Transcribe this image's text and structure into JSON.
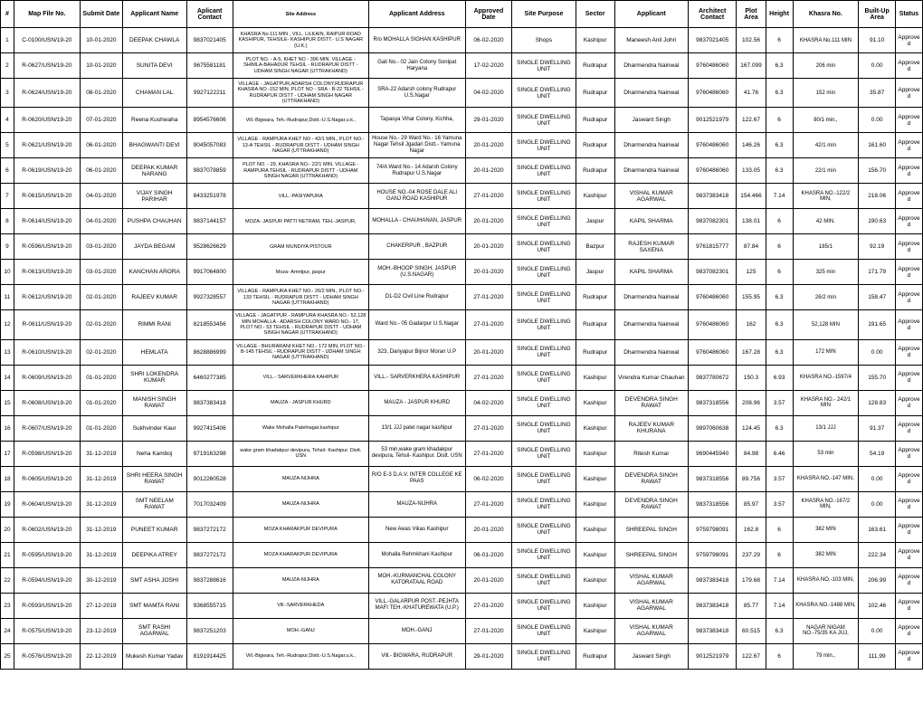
{
  "columns": [
    "#",
    "Map File No.",
    "Submit Date",
    "Applicant Name",
    "Aplicant Contact",
    "Site Address",
    "Applicant Address",
    "Approved Date",
    "Site Purpose",
    "Sector",
    "Applicant",
    "Architect Contact",
    "Plot Area",
    "Height",
    "Khasra No.",
    "Built-Up Area",
    "Status"
  ],
  "rows": [
    [
      "1",
      "C-0100/USN/19-20",
      "10-01-2020",
      "DEEPAK CHAWLA",
      "9837021405",
      "KHASRA No.111 MIN , VILL. LILKAIN, RAIPUR ROAD KASHIPUR, TEHSILE- KASHIPUR DISTT.- U.S NAGAR (U.K.)",
      "R/o MOHALLA SIGHAN KASHIPUR",
      "06-02-2020",
      "Shops",
      "Kashipur",
      "Maneesh Anil Johri",
      "9837021405",
      "102.56",
      "6",
      "KHASRA No.111 MIN",
      "91.10",
      "Approved"
    ],
    [
      "2",
      "R-0627/USN/19-20",
      "10-01-2020",
      "SUNITA DEVI",
      "9675581181",
      "PLOT NO. - A-5, KHET NO - 396 MIN. VILLAGE - SHIMLA-BAHADUR TEHSIL - RUDRAPUR DISTT - UDHAM SINGH NAGAR (UTTRAKHAND)",
      "Gali No.- 02 Jain Colony Sonipat Haryana",
      "17-02-2020",
      "SINGLE DWELLING UNIT",
      "Rudrapur",
      "Dharmendra Nainwal",
      "9760486060",
      "167.099",
      "6.3",
      "206 min",
      "0.00",
      "Approved"
    ],
    [
      "3",
      "R-0624/USN/19-20",
      "08-01-2020",
      "CHAMAN LAL",
      "9927122211",
      "VILLAGE - JAGATPUR,ADARSH COLONY,RUDRAPUR KHASRA NO -152 MIN, PLOT NO - SRA - B-22 TEHSIL - RUDRAPUR DISTT - UDHAM SINGH NAGAR (UTTRAKHAND)",
      "SRA-22 Adarsh colony Rudrapur U.S.Nagar",
      "04-02-2020",
      "SINGLE DWELLING UNIT",
      "Rudrapur",
      "Dharmendra Nainwal",
      "9760486060",
      "41.76",
      "6.3",
      "152 min",
      "35.87",
      "Approved"
    ],
    [
      "4",
      "R-0620/USN/19-20",
      "07-01-2020",
      "Reena Kushwaha",
      "8954576606",
      "Vill.-Bigwara, Teh.-Rudrapur,Distt.-U.S.Nagar,u.k.,",
      "Tapasya Vihar Colony, Kichha,",
      "29-01-2020",
      "SINGLE DWELLING UNIT",
      "Rudrapur",
      "Jaswant Singh",
      "9012521979",
      "122.67",
      "6",
      "80/1 min.,",
      "0.00",
      "Approved"
    ],
    [
      "5",
      "R-0621/USN/19-20",
      "06-01-2020",
      "BHAGWANTI DEVI",
      "9045057083",
      "VILLAGE - RAMPURA KHET NO - 42/1 MIN., PLOT NO.- 13-A TEHSIL - RUDRAPUR DISTT - UDHAM SINGH NAGAR (UTTRAKHAND)",
      "House No.- 29 Ward No.- 16 Yamuna Nagar Tehsil Jgadari Distt.- Yamuna Nagar",
      "20-01-2020",
      "SINGLE DWELLING UNIT",
      "Rudrapur",
      "Dharmendra Nainwal",
      "9760486060",
      "146.26",
      "6.3",
      "42/1 min",
      "161.60",
      "Approved"
    ],
    [
      "6",
      "R-0619/USN/19-20",
      "06-01-2020",
      "DEEPAK KUMAR NARANG",
      "9837078859",
      "PLOT NO. - 29, KHASRA NO.- 22/1 MIN. VILLAGE - RAMPURA TEHSIL - RUDRAPUR DISTT - UDHAM SINGH NAGAR (UTTRAKHAND)",
      "74/A Ward No.- 14 Adarsh Colony Rudrapur U.S.Nagar",
      "20-01-2020",
      "SINGLE DWELLING UNIT",
      "Rudrapur",
      "Dharmendra Nainwal",
      "9760486060",
      "133.05",
      "6.3",
      "22/1 min",
      "156.70",
      "Approved"
    ],
    [
      "7",
      "R-0615/USN/19-20",
      "04-01-2020",
      "VIJAY SINGH PARIHAR",
      "8433251978",
      "VILL.-PASIYAPURA",
      "HOUSE NO.-04 ROSE DALE ALI GANJ ROAD KASHIPUR",
      "27-01-2020",
      "SINGLE DWELLING UNIT",
      "Kashipur",
      "VISHAL KUMAR AGARWAL",
      "9837383418",
      "154.466",
      "7.14",
      "KHASRA NO.-122/2 MIN,",
      "218.06",
      "Approved"
    ],
    [
      "8",
      "R-0614/USN/19-20",
      "04-01-2020",
      "PUSHPA CHAUHAN",
      "9837144157",
      "MOZA- JASPUR PATTI NETRAM, TEH.-JASPUR,",
      "MOHALLA - CHAUHANAN, JASPUR",
      "20-01-2020",
      "SINGLE DWELLING UNIT",
      "Jaspur",
      "KAPIL SHARMA",
      "9837082301",
      "138.01",
      "6",
      "42 MIN.",
      "190.63",
      "Approved"
    ],
    [
      "9",
      "R-0596/USN/19-20",
      "03-01-2020",
      "JAYDA BEGAM",
      "9528626629",
      "GRAM MUNDIYA PISTOUR",
      "CHAKERPUR , BAZPUR",
      "20-01-2020",
      "SINGLE DWELLING UNIT",
      "Bazpur",
      "RAJESH KUMAR SAXENA",
      "9761815777",
      "87.84",
      "6",
      "185/1",
      "92.19",
      "Approved"
    ],
    [
      "10",
      "R-0613/USN/19-20",
      "03-01-2020",
      "KANCHAN ARORA",
      "9917064800",
      "Moza- Amritpur, jaspur",
      "MOH.-BHOOP SINGH, JASPUR (U.S.NAGAR)",
      "20-01-2020",
      "SINGLE DWELLING UNIT",
      "Jaspur",
      "KAPIL SHARMA",
      "9837082301",
      "125",
      "6",
      "325 min",
      "171.79",
      "Approved"
    ],
    [
      "11",
      "R-0612/USN/19-20",
      "02-01-2020",
      "RAJEEV KUMAR",
      "9927328557",
      "VILLAGE - RAMPURA KHET NO.- 26/2 MIN., PLOT NO.- 133 TEHSIL - RUDRAPUR DISTT - UDHAM SINGH NAGAR (UTTRAKHAND)",
      "D1-D2 Civil Line Rudrapur",
      "27-01-2020",
      "SINGLE DWELLING UNIT",
      "Rudrapur",
      "Dharmendra Nainwal",
      "9760486060",
      "155.95",
      "6.3",
      "26/2 min",
      "158.47",
      "Approved"
    ],
    [
      "12",
      "R-0611/USN/19-20",
      "02-01-2020",
      "RIMMI RANI",
      "8218553456",
      "VILLAGE - JAGATPUR - RAMPURA KHASRA NO.- 52,128 MIN MOHALLA - ADARSH COLONY WARD NO.- 17, PLOT NO.- 53 TEHSIL - RUDRAPUR DISTT - UDHAM SINGH NAGAR (UTTRAKHAND)",
      "Ward No.- 05 Gadarpur U.S.Nagar",
      "27-01-2020",
      "SINGLE DWELLING UNIT",
      "Rudrapur",
      "Dharmendra Nainwal",
      "9760486060",
      "162",
      "6.3",
      "52,128 MIN",
      "191.65",
      "Approved"
    ],
    [
      "13",
      "R-0610/USN/19-20",
      "02-01-2020",
      "HEMLATA",
      "8628886999",
      "VILLAGE - BHURARANI KHET NO.- 172 MIN, PLOT NO.- B-145 TEHSIL - RUDRAPUR DISTT - UDHAM SINGH NAGAR (UTTRAKHAND)",
      "323, Dariyapur Bijnor Moran U.P",
      "20-01-2020",
      "SINGLE DWELLING UNIT",
      "Rudrapur",
      "Dharmendra Nainwal",
      "9760486060",
      "167.28",
      "6.3",
      "172 MIN",
      "0.00",
      "Approved"
    ],
    [
      "14",
      "R-0609/USN/19-20",
      "01-01-2020",
      "SHRI LOKENDRA KUMAR",
      "6460277385",
      "VILL.- SARVERKHERA KAHIPUR",
      "VILL.- SARVERKHERA KASHIPUR",
      "27-01-2020",
      "SINGLE DWELLING UNIT",
      "Kashipur",
      "Virendra Kumar Chauhan",
      "9837780672",
      "150.3",
      "6.93",
      "KHASRA NO.-1597/4",
      "155.70",
      "Approved"
    ],
    [
      "15",
      "R-0608/USN/19-20",
      "01-01-2020",
      "MANISH SINGH RAWAT",
      "9837383418",
      "MAUZA - JASPUR KHURD",
      "MAUZA - JASPUR KHURD",
      "04-02-2020",
      "SINGLE DWELLING UNIT",
      "Kashipur",
      "DEVENDRA SINGH RAWAT",
      "9837318556",
      "208.96",
      "3.57",
      "KHASRA NO.- 242/1 MIN",
      "128.83",
      "Approved"
    ],
    [
      "16",
      "R-0607/USN/19-20",
      "01-01-2020",
      "Sukhvinder Kaur",
      "9927415406",
      "Wake Mohalla Patelnagar,kashipur",
      "13/1 JJJ patel nagar kashipur",
      "27-01-2020",
      "SINGLE DWELLING UNIT",
      "Kashipur",
      "RAJEEV KUMAR KHURANA",
      "9897060638",
      "124.45",
      "6.3",
      "13/1 JJJ",
      "91.37",
      "Approved"
    ],
    [
      "17",
      "R-0598/USN/19-20",
      "31-12-2019",
      "Neha Kamboj",
      "9719163298",
      "wake gram khadakpur devipura, Tehsil- Kashipur. Distt. USN",
      "53 min,wake gram khadakpur devipura, Tehsil- Kashipur. Distt. USN",
      "27-01-2020",
      "SINGLE DWELLING UNIT",
      "Kashipur",
      "Ritesh Kumar",
      "9690445940",
      "84.98",
      "6.46",
      "53 min",
      "54.19",
      "Approved"
    ],
    [
      "18",
      "R-0605/USN/19-20",
      "31-12-2019",
      "SHRI HEERA SINGH RAWAT",
      "9012260528",
      "MAUZA-NIJHRA",
      "R/O E-3 D.A.V. INTER COLLEGE KE PAAS",
      "06-02-2020",
      "SINGLE DWELLING UNIT",
      "Kashipur",
      "DEVENDRA SINGH RAWAT",
      "9837318556",
      "89.756",
      "3.57",
      "KHASRA NO.-147 MIN,",
      "0.00",
      "Approved"
    ],
    [
      "19",
      "R-0604/USN/19-20",
      "31-12-2019",
      "SMT NEELAM RAWAT",
      "7017032409",
      "MAUZA-NIJHRA",
      "MAUZA-NIJHRA",
      "27-01-2020",
      "SINGLE DWELLING UNIT",
      "Kashipur",
      "DEVENDRA SINGH RAWAT",
      "9837318556",
      "85.97",
      "3.57",
      "KHASRA NO.-167/2 MIN,",
      "0.00",
      "Approved"
    ],
    [
      "20",
      "R-0602/USN/19-20",
      "31-12-2019",
      "PUNEET KUMAR",
      "9837272172",
      "MOZA KHARAKPUR DEVIPURA",
      "New Awas Vikas Kashipur",
      "20-01-2020",
      "SINGLE DWELLING UNIT",
      "Kashipur",
      "SHREEPAL SINGH",
      "9759798091",
      "162.8",
      "6",
      "382 MIN",
      "163.61",
      "Approved"
    ],
    [
      "21",
      "R-0595/USN/19-20",
      "31-12-2019",
      "DEEPIKA ATREY",
      "9837272172",
      "MOZA KHARAKPUR DEVIPURA",
      "Mohalla Rehmkhani Kashipur",
      "06-01-2020",
      "SINGLE DWELLING UNIT",
      "Kashipur",
      "SHREEPAL SINGH",
      "9759798091",
      "237.29",
      "6",
      "382 MIN",
      "222.34",
      "Approved"
    ],
    [
      "22",
      "R-0594/USN/19-20",
      "30-12-2019",
      "SMT ASHA JOSHI",
      "9837288616",
      "MAUZA-NIJHRA",
      "MOH.-KURMANCHAL COLONY KATORATAAL ROAD",
      "20-01-2020",
      "SINGLE DWELLING UNIT",
      "Kashipur",
      "VISHAL KUMAR AGARWAL",
      "9837383418",
      "179.68",
      "7.14",
      "KHASRA NO.-103 MIN,",
      "206.99",
      "Approved"
    ],
    [
      "23",
      "R-0593/USN/19-20",
      "27-12-2019",
      "SMT MAMTA RANI",
      "9368555715",
      "Vill.-SARVERKHEDA",
      "VILL.-GALARPUR POST.-PEJHTA MAFI TEH.-KHATUREWATA (U.P.)",
      "27-01-2020",
      "SINGLE DWELLING UNIT",
      "Kashipur",
      "VISHAL KUMAR AGARWAL",
      "9837383418",
      "85.77",
      "7.14",
      "KHASRA NO.-1488 MIN,",
      "102.46",
      "Approved"
    ],
    [
      "24",
      "R-0575/USN/19-20",
      "23-12-2019",
      "SMT RASHI AGARWAL",
      "9837251203",
      "MOH.-GANJ",
      "MOH.-GANJ",
      "27-01-2020",
      "SINGLE DWELLING UNIT",
      "Kashipur",
      "VISHAL KUMAR AGARWAL",
      "9837383418",
      "60.515",
      "6.3",
      "NAGAR NIGAM NO.-75/35 KA JUJ,",
      "0.00",
      "Approved"
    ],
    [
      "25",
      "R-0576/USN/19-20",
      "22-12-2019",
      "Mukesh Kumar Yadav",
      "8191914425",
      "Vill.-Bigwara, Teh.-Rudrapur,Distt.-U.S.Nagar,u.k.,",
      "Vill.- BIGWARA, RUDRAPUR",
      "29-01-2020",
      "SINGLE DWELLING UNIT",
      "Rudrapur",
      "Jaswant Singh",
      "9012521979",
      "122.67",
      "6",
      "79 min.,",
      "111.99",
      "Approved"
    ]
  ],
  "colClasses": [
    "col-idx",
    "col-mapfile",
    "col-submit",
    "col-appname",
    "col-contact",
    "col-siteaddr",
    "col-appaddr",
    "col-approved",
    "col-purpose",
    "col-sector",
    "col-applicant",
    "col-archcontact",
    "col-plotarea",
    "col-height",
    "col-khasra",
    "col-builtup",
    "col-status"
  ],
  "cellClasses": [
    "",
    "",
    "",
    "",
    "",
    "siteaddr",
    "appaddr",
    "",
    "",
    "",
    "",
    "",
    "",
    "",
    "khasra",
    "",
    ""
  ]
}
